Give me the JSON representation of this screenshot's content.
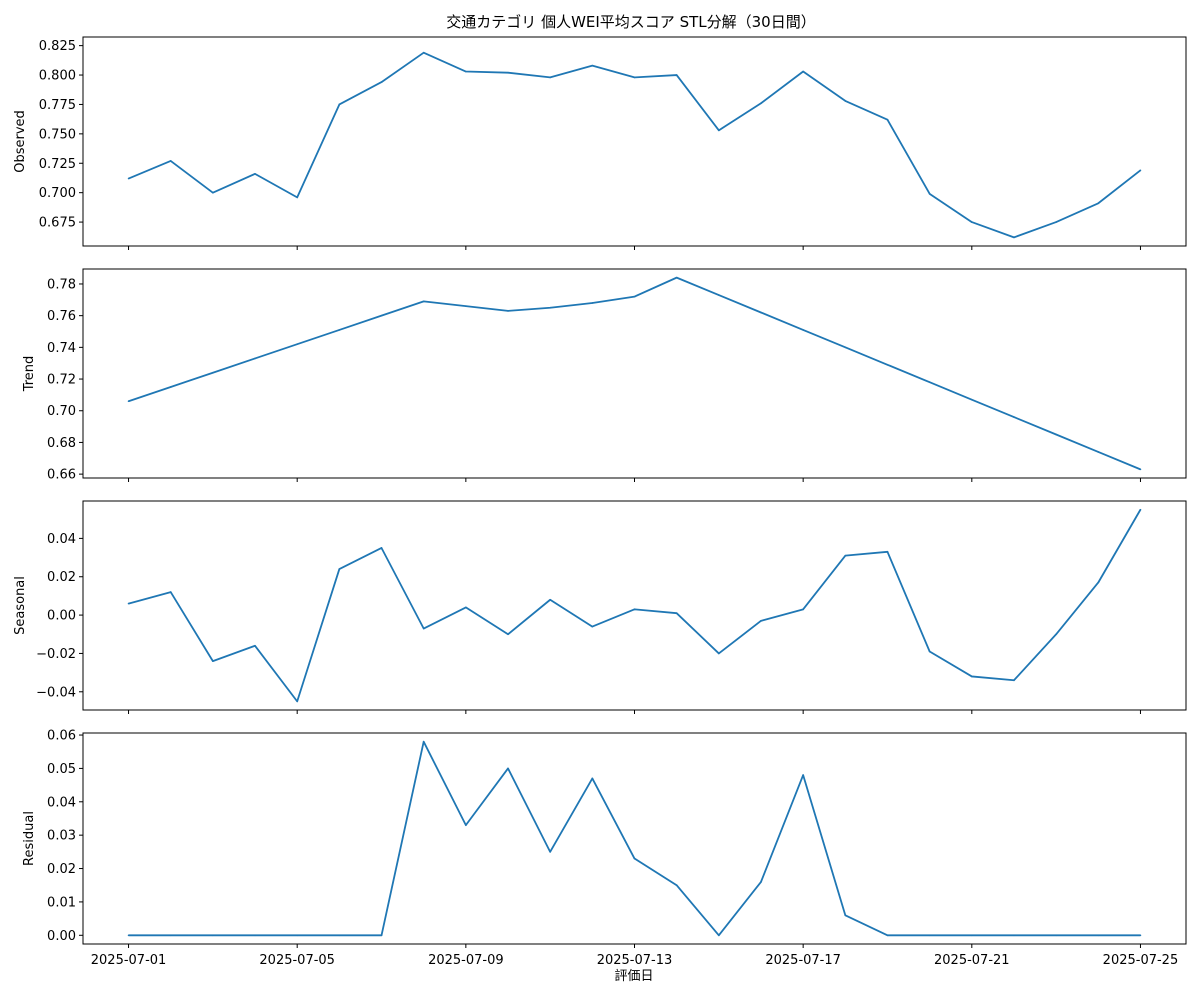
{
  "chart_data": {
    "type": "line",
    "title": "交通カテゴリ 個人WEI平均スコア STL分解（30日間）",
    "xlabel": "評価日",
    "x_tick_labels": [
      "2025-07-01",
      "2025-07-05",
      "2025-07-09",
      "2025-07-13",
      "2025-07-17",
      "2025-07-21",
      "2025-07-25"
    ],
    "x": [
      "2025-07-01",
      "2025-07-02",
      "2025-07-03",
      "2025-07-04",
      "2025-07-05",
      "2025-07-06",
      "2025-07-07",
      "2025-07-08",
      "2025-07-09",
      "2025-07-10",
      "2025-07-11",
      "2025-07-12",
      "2025-07-13",
      "2025-07-14",
      "2025-07-15",
      "2025-07-16",
      "2025-07-17",
      "2025-07-18",
      "2025-07-19",
      "2025-07-20",
      "2025-07-21",
      "2025-07-22",
      "2025-07-23",
      "2025-07-24",
      "2025-07-25"
    ],
    "line_color": "#1f77b4",
    "grid": false,
    "panels": [
      {
        "ylabel": "Observed",
        "ylim": [
          0.662,
          0.825
        ],
        "y_ticks": [
          0.675,
          0.7,
          0.725,
          0.75,
          0.775,
          0.8,
          0.825
        ],
        "y_tick_labels": [
          "0.675",
          "0.700",
          "0.725",
          "0.750",
          "0.775",
          "0.800",
          "0.825"
        ],
        "values": [
          0.712,
          0.727,
          0.7,
          0.716,
          0.696,
          0.775,
          0.794,
          0.819,
          0.803,
          0.802,
          0.798,
          0.808,
          0.798,
          0.8,
          0.753,
          0.776,
          0.803,
          0.778,
          0.762,
          0.699,
          0.675,
          0.662,
          0.675,
          0.691,
          0.719
        ]
      },
      {
        "ylabel": "Trend",
        "ylim": [
          0.663,
          0.784
        ],
        "y_ticks": [
          0.66,
          0.68,
          0.7,
          0.72,
          0.74,
          0.76,
          0.78
        ],
        "y_tick_labels": [
          "0.66",
          "0.68",
          "0.70",
          "0.72",
          "0.74",
          "0.76",
          "0.78"
        ],
        "values": [
          0.706,
          0.715,
          0.724,
          0.733,
          0.742,
          0.751,
          0.76,
          0.769,
          0.766,
          0.763,
          0.765,
          0.768,
          0.772,
          0.784,
          0.773,
          0.762,
          0.751,
          0.74,
          0.729,
          0.718,
          0.707,
          0.696,
          0.685,
          0.674,
          0.663
        ]
      },
      {
        "ylabel": "Seasonal",
        "ylim": [
          -0.045,
          0.055
        ],
        "y_ticks": [
          -0.04,
          -0.02,
          0.0,
          0.02,
          0.04
        ],
        "y_tick_labels": [
          "−0.04",
          "−0.02",
          "0.00",
          "0.02",
          "0.04"
        ],
        "values": [
          0.006,
          0.012,
          -0.024,
          -0.016,
          -0.045,
          0.024,
          0.035,
          -0.007,
          0.004,
          -0.01,
          0.008,
          -0.006,
          0.003,
          0.001,
          -0.02,
          -0.003,
          0.003,
          0.031,
          0.033,
          -0.019,
          -0.032,
          -0.034,
          -0.01,
          0.017,
          0.055
        ]
      },
      {
        "ylabel": "Residual",
        "ylim": [
          0.0,
          0.058
        ],
        "y_ticks": [
          0.0,
          0.01,
          0.02,
          0.03,
          0.04,
          0.05,
          0.06
        ],
        "y_tick_labels": [
          "0.00",
          "0.01",
          "0.02",
          "0.03",
          "0.04",
          "0.05",
          "0.06"
        ],
        "values": [
          0.0,
          0.0,
          0.0,
          0.0,
          0.0,
          0.0,
          0.0,
          0.058,
          0.033,
          0.05,
          0.025,
          0.047,
          0.023,
          0.015,
          0.0,
          0.016,
          0.048,
          0.006,
          0.0,
          0.0,
          0.0,
          0.0,
          0.0,
          0.0,
          0.0
        ]
      }
    ]
  }
}
